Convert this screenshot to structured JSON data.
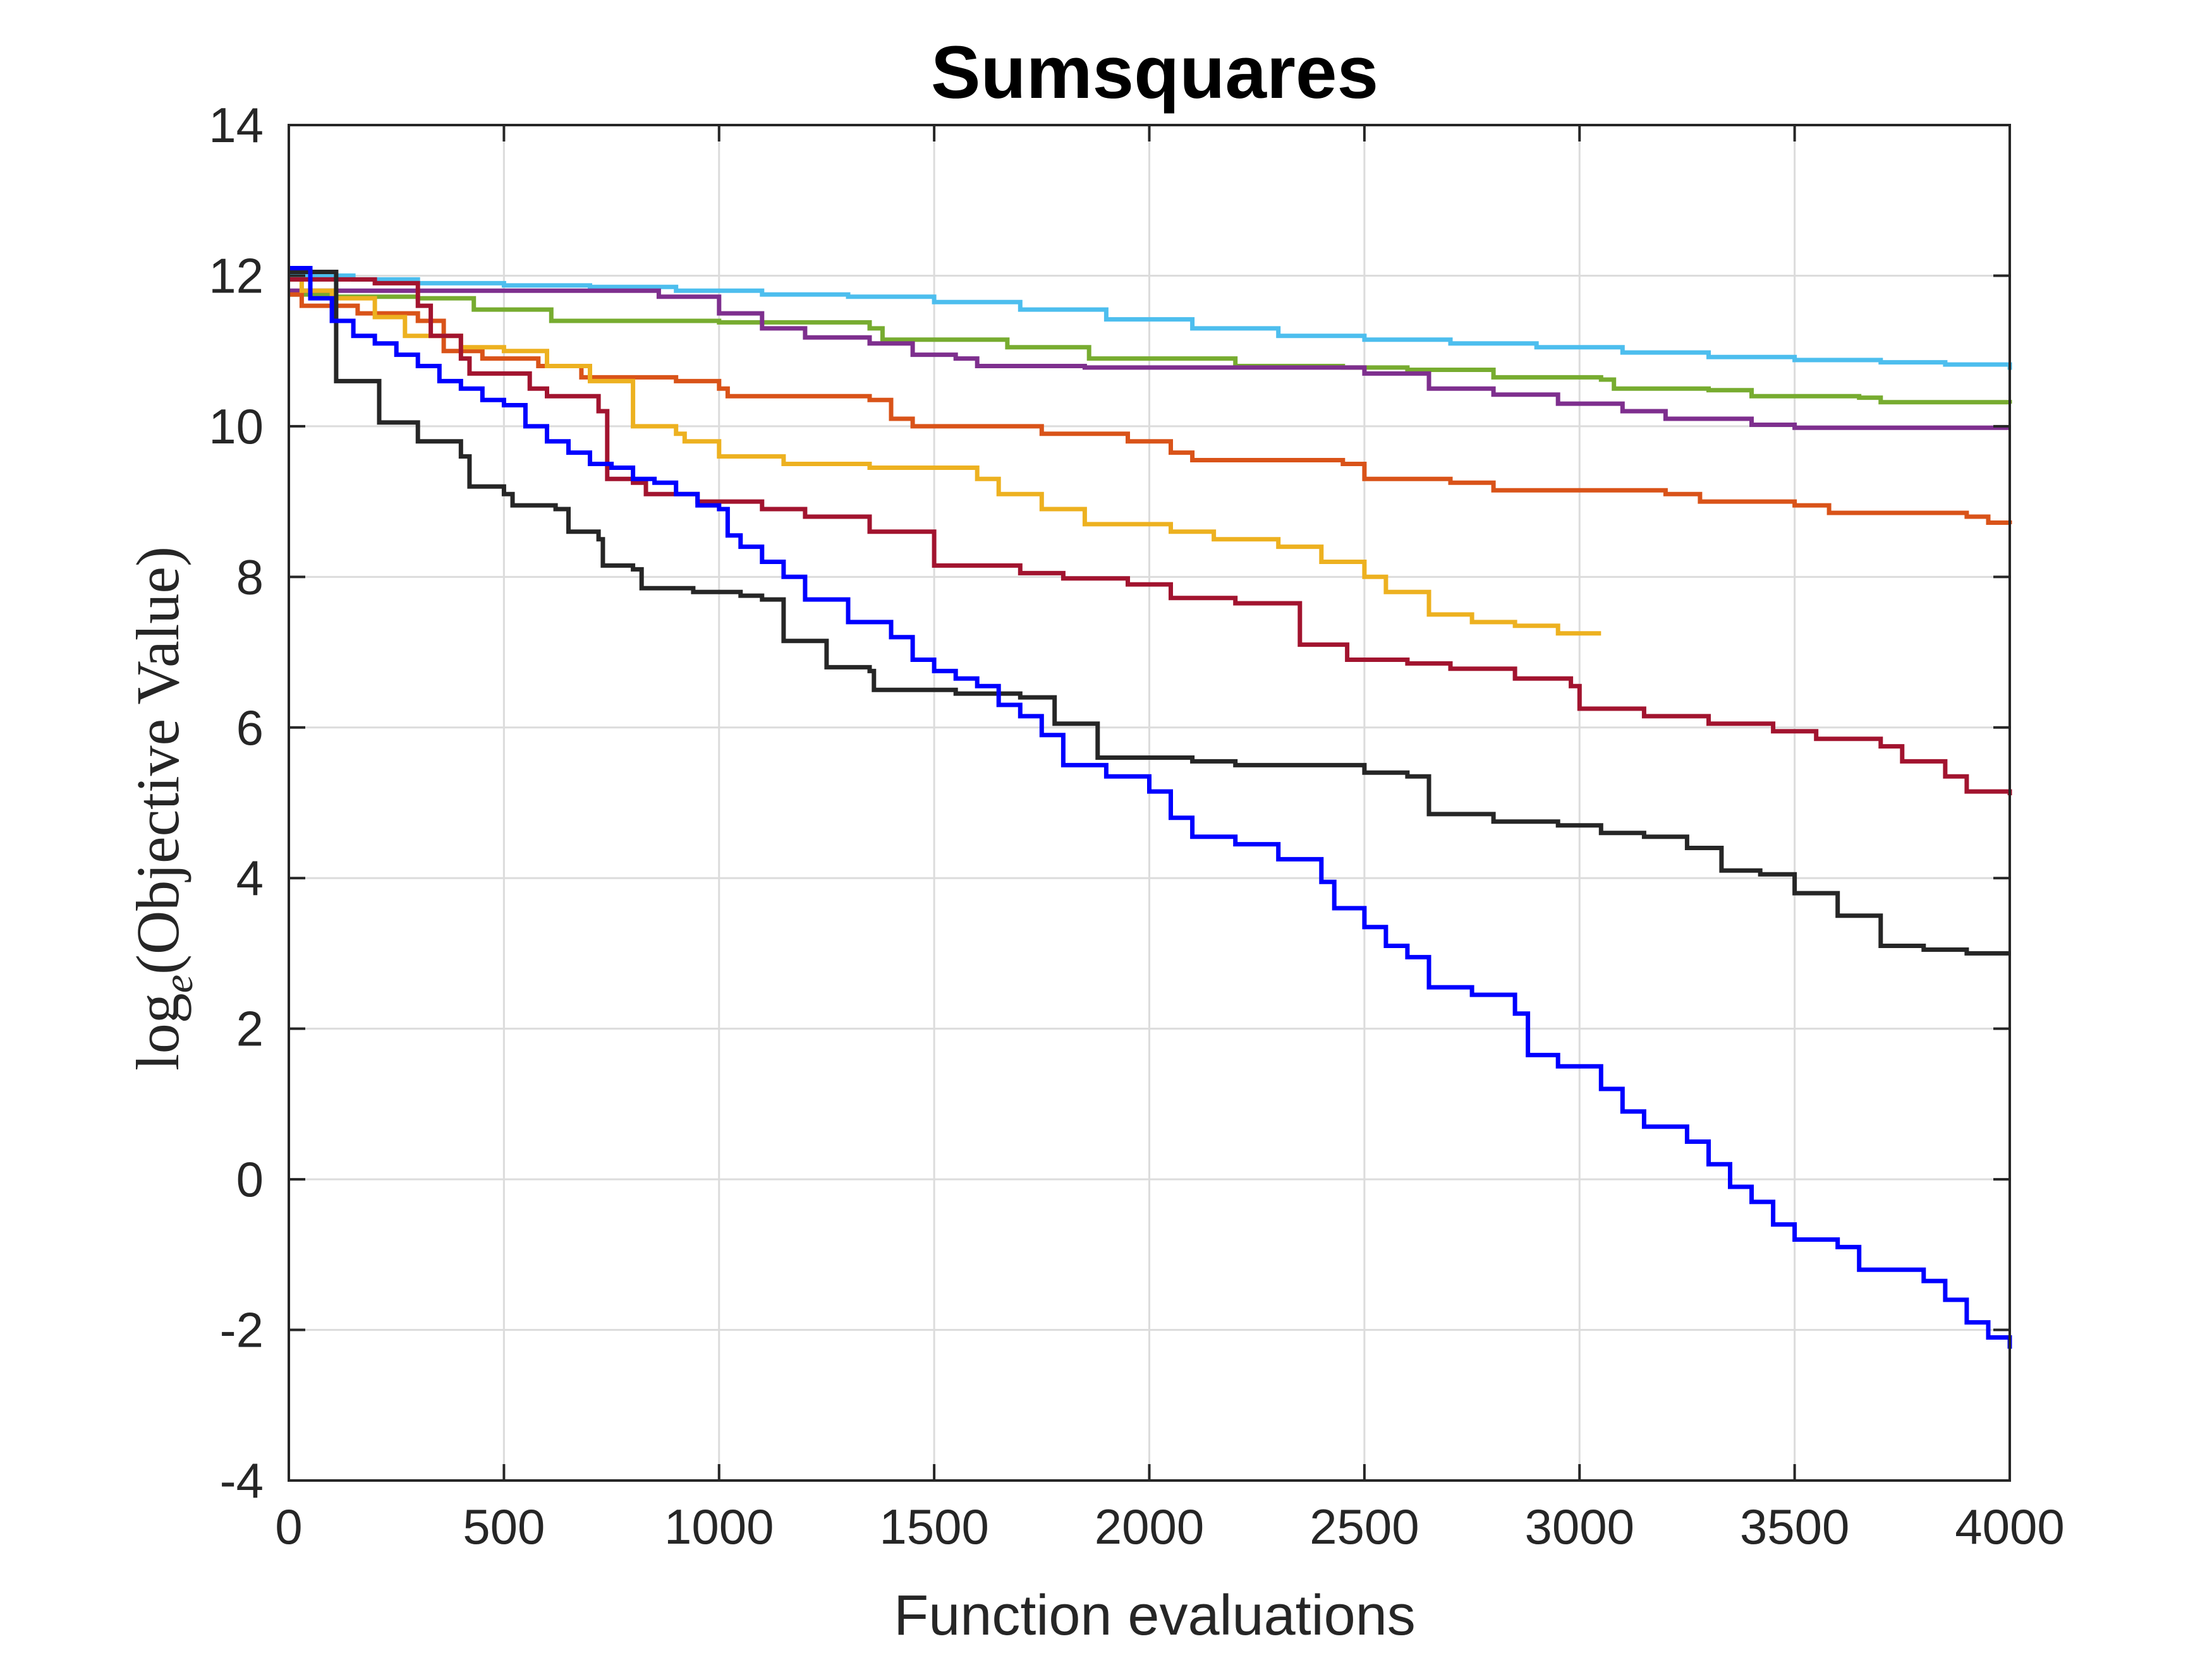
{
  "chart_data": {
    "type": "line",
    "title": "Sumsquares",
    "xlabel": "Function evaluations",
    "ylabel": {
      "prefix": "log",
      "subscript": "e",
      "suffix": "(Objective Value)"
    },
    "xlim": [
      0,
      4000
    ],
    "ylim": [
      -4,
      14
    ],
    "xticks": [
      0,
      500,
      1000,
      1500,
      2000,
      2500,
      3000,
      3500,
      4000
    ],
    "xtick_labels": [
      "0",
      "500",
      "1000",
      "1500",
      "2000",
      "2500",
      "3000",
      "3500",
      "4000"
    ],
    "yticks": [
      -4,
      -2,
      0,
      2,
      4,
      6,
      8,
      10,
      12,
      14
    ],
    "ytick_labels": [
      "-4",
      "-2",
      "0",
      "2",
      "4",
      "6",
      "8",
      "10",
      "12",
      "14"
    ],
    "grid": true,
    "legend": "none",
    "series": [
      {
        "color": "#4DBEEE",
        "points": [
          [
            0,
            12.0
          ],
          [
            150,
            11.95
          ],
          [
            300,
            11.9
          ],
          [
            500,
            11.87
          ],
          [
            700,
            11.85
          ],
          [
            900,
            11.8
          ],
          [
            1100,
            11.75
          ],
          [
            1300,
            11.72
          ],
          [
            1500,
            11.65
          ],
          [
            1700,
            11.55
          ],
          [
            1900,
            11.42
          ],
          [
            2100,
            11.3
          ],
          [
            2300,
            11.2
          ],
          [
            2500,
            11.15
          ],
          [
            2700,
            11.1
          ],
          [
            2900,
            11.05
          ],
          [
            3100,
            10.98
          ],
          [
            3300,
            10.92
          ],
          [
            3500,
            10.88
          ],
          [
            3700,
            10.85
          ],
          [
            3850,
            10.82
          ],
          [
            4000,
            10.75
          ]
        ]
      },
      {
        "color": "#77AC30",
        "points": [
          [
            0,
            11.75
          ],
          [
            100,
            11.72
          ],
          [
            300,
            11.7
          ],
          [
            430,
            11.55
          ],
          [
            600,
            11.55
          ],
          [
            610,
            11.4
          ],
          [
            900,
            11.4
          ],
          [
            1000,
            11.38
          ],
          [
            1350,
            11.3
          ],
          [
            1380,
            11.15
          ],
          [
            1650,
            11.15
          ],
          [
            1670,
            11.05
          ],
          [
            1850,
            11.05
          ],
          [
            1860,
            10.9
          ],
          [
            2150,
            10.9
          ],
          [
            2200,
            10.8
          ],
          [
            2450,
            10.78
          ],
          [
            2600,
            10.75
          ],
          [
            2800,
            10.65
          ],
          [
            3050,
            10.62
          ],
          [
            3080,
            10.5
          ],
          [
            3300,
            10.48
          ],
          [
            3400,
            10.4
          ],
          [
            3650,
            10.38
          ],
          [
            3700,
            10.32
          ],
          [
            4000,
            10.3
          ]
        ]
      },
      {
        "color": "#7E2F8E",
        "points": [
          [
            0,
            11.8
          ],
          [
            500,
            11.8
          ],
          [
            800,
            11.8
          ],
          [
            860,
            11.72
          ],
          [
            1000,
            11.5
          ],
          [
            1100,
            11.3
          ],
          [
            1200,
            11.18
          ],
          [
            1350,
            11.1
          ],
          [
            1450,
            10.95
          ],
          [
            1550,
            10.9
          ],
          [
            1600,
            10.8
          ],
          [
            1850,
            10.78
          ],
          [
            2100,
            10.78
          ],
          [
            2400,
            10.78
          ],
          [
            2500,
            10.7
          ],
          [
            2650,
            10.5
          ],
          [
            2800,
            10.42
          ],
          [
            2950,
            10.3
          ],
          [
            3100,
            10.2
          ],
          [
            3200,
            10.1
          ],
          [
            3400,
            10.02
          ],
          [
            3500,
            9.98
          ],
          [
            4000,
            9.98
          ]
        ]
      },
      {
        "color": "#D95319",
        "points": [
          [
            0,
            11.75
          ],
          [
            30,
            11.6
          ],
          [
            160,
            11.5
          ],
          [
            300,
            11.4
          ],
          [
            360,
            11.0
          ],
          [
            450,
            10.9
          ],
          [
            580,
            10.8
          ],
          [
            680,
            10.65
          ],
          [
            900,
            10.6
          ],
          [
            1000,
            10.5
          ],
          [
            1020,
            10.4
          ],
          [
            1350,
            10.35
          ],
          [
            1400,
            10.1
          ],
          [
            1450,
            10.0
          ],
          [
            1750,
            9.9
          ],
          [
            1950,
            9.8
          ],
          [
            2050,
            9.65
          ],
          [
            2100,
            9.55
          ],
          [
            2450,
            9.5
          ],
          [
            2500,
            9.3
          ],
          [
            2700,
            9.25
          ],
          [
            2800,
            9.15
          ],
          [
            3200,
            9.1
          ],
          [
            3280,
            9.0
          ],
          [
            3500,
            8.95
          ],
          [
            3580,
            8.85
          ],
          [
            3900,
            8.8
          ],
          [
            3950,
            8.72
          ],
          [
            4000,
            8.7
          ]
        ]
      },
      {
        "color": "#EDB120",
        "points": [
          [
            0,
            11.95
          ],
          [
            30,
            11.8
          ],
          [
            100,
            11.7
          ],
          [
            200,
            11.45
          ],
          [
            270,
            11.2
          ],
          [
            400,
            11.05
          ],
          [
            500,
            11.0
          ],
          [
            600,
            10.8
          ],
          [
            700,
            10.6
          ],
          [
            800,
            10.0
          ],
          [
            900,
            9.9
          ],
          [
            920,
            9.8
          ],
          [
            1000,
            9.6
          ],
          [
            1150,
            9.5
          ],
          [
            1350,
            9.45
          ],
          [
            1600,
            9.3
          ],
          [
            1650,
            9.1
          ],
          [
            1750,
            8.9
          ],
          [
            1850,
            8.7
          ],
          [
            2050,
            8.6
          ],
          [
            2150,
            8.5
          ],
          [
            2300,
            8.4
          ],
          [
            2400,
            8.2
          ],
          [
            2500,
            8.0
          ],
          [
            2550,
            7.8
          ],
          [
            2650,
            7.5
          ],
          [
            2750,
            7.4
          ],
          [
            2850,
            7.35
          ],
          [
            2950,
            7.25
          ],
          [
            3050,
            7.25
          ]
        ]
      },
      {
        "color": "#A2142F",
        "points": [
          [
            0,
            11.95
          ],
          [
            100,
            11.95
          ],
          [
            200,
            11.9
          ],
          [
            300,
            11.6
          ],
          [
            330,
            11.2
          ],
          [
            400,
            10.9
          ],
          [
            420,
            10.7
          ],
          [
            560,
            10.5
          ],
          [
            600,
            10.4
          ],
          [
            720,
            10.2
          ],
          [
            740,
            9.3
          ],
          [
            800,
            9.25
          ],
          [
            830,
            9.1
          ],
          [
            950,
            9.0
          ],
          [
            1100,
            8.9
          ],
          [
            1200,
            8.8
          ],
          [
            1350,
            8.6
          ],
          [
            1500,
            8.45
          ],
          [
            1500,
            8.15
          ],
          [
            1700,
            8.05
          ],
          [
            1800,
            7.98
          ],
          [
            1950,
            7.9
          ],
          [
            2050,
            7.72
          ],
          [
            2200,
            7.65
          ],
          [
            2350,
            7.55
          ],
          [
            2350,
            7.1
          ],
          [
            2450,
            7.1
          ],
          [
            2460,
            6.9
          ],
          [
            2600,
            6.85
          ],
          [
            2700,
            6.78
          ],
          [
            2850,
            6.65
          ],
          [
            2980,
            6.55
          ],
          [
            3000,
            6.25
          ],
          [
            3150,
            6.15
          ],
          [
            3300,
            6.05
          ],
          [
            3450,
            5.95
          ],
          [
            3550,
            5.85
          ],
          [
            3700,
            5.75
          ],
          [
            3750,
            5.55
          ],
          [
            3850,
            5.35
          ],
          [
            3900,
            5.15
          ],
          [
            4000,
            5.1
          ]
        ]
      },
      {
        "color": "#262626",
        "points": [
          [
            0,
            12.05
          ],
          [
            100,
            12.05
          ],
          [
            110,
            10.6
          ],
          [
            200,
            10.6
          ],
          [
            210,
            10.05
          ],
          [
            300,
            9.8
          ],
          [
            400,
            9.6
          ],
          [
            420,
            9.2
          ],
          [
            500,
            9.1
          ],
          [
            520,
            8.95
          ],
          [
            620,
            8.9
          ],
          [
            650,
            8.6
          ],
          [
            720,
            8.5
          ],
          [
            730,
            8.15
          ],
          [
            800,
            8.1
          ],
          [
            820,
            7.85
          ],
          [
            940,
            7.8
          ],
          [
            1050,
            7.75
          ],
          [
            1100,
            7.7
          ],
          [
            1150,
            7.15
          ],
          [
            1250,
            7.1
          ],
          [
            1250,
            6.8
          ],
          [
            1350,
            6.75
          ],
          [
            1360,
            6.5
          ],
          [
            1550,
            6.45
          ],
          [
            1700,
            6.4
          ],
          [
            1780,
            6.3
          ],
          [
            1780,
            6.05
          ],
          [
            1880,
            6.0
          ],
          [
            1880,
            5.6
          ],
          [
            2100,
            5.55
          ],
          [
            2200,
            5.5
          ],
          [
            2500,
            5.4
          ],
          [
            2600,
            5.35
          ],
          [
            2650,
            4.85
          ],
          [
            2800,
            4.75
          ],
          [
            2950,
            4.7
          ],
          [
            3050,
            4.6
          ],
          [
            3150,
            4.55
          ],
          [
            3250,
            4.4
          ],
          [
            3330,
            4.1
          ],
          [
            3420,
            4.05
          ],
          [
            3500,
            3.8
          ],
          [
            3550,
            3.8
          ],
          [
            3600,
            3.5
          ],
          [
            3700,
            3.35
          ],
          [
            3700,
            3.1
          ],
          [
            3800,
            3.05
          ],
          [
            3900,
            3.0
          ],
          [
            4000,
            3.0
          ]
        ]
      },
      {
        "color": "#0000FF",
        "points": [
          [
            0,
            12.1
          ],
          [
            50,
            11.7
          ],
          [
            100,
            11.4
          ],
          [
            150,
            11.2
          ],
          [
            200,
            11.1
          ],
          [
            250,
            10.95
          ],
          [
            300,
            10.8
          ],
          [
            350,
            10.6
          ],
          [
            400,
            10.5
          ],
          [
            450,
            10.35
          ],
          [
            500,
            10.28
          ],
          [
            550,
            10.0
          ],
          [
            600,
            9.8
          ],
          [
            650,
            9.65
          ],
          [
            700,
            9.5
          ],
          [
            750,
            9.45
          ],
          [
            800,
            9.3
          ],
          [
            850,
            9.25
          ],
          [
            900,
            9.1
          ],
          [
            950,
            8.95
          ],
          [
            1000,
            8.9
          ],
          [
            1020,
            8.55
          ],
          [
            1050,
            8.4
          ],
          [
            1100,
            8.2
          ],
          [
            1150,
            8.0
          ],
          [
            1200,
            7.7
          ],
          [
            1300,
            7.4
          ],
          [
            1400,
            7.2
          ],
          [
            1450,
            6.9
          ],
          [
            1500,
            6.75
          ],
          [
            1550,
            6.65
          ],
          [
            1600,
            6.55
          ],
          [
            1650,
            6.3
          ],
          [
            1700,
            6.15
          ],
          [
            1750,
            5.9
          ],
          [
            1800,
            5.5
          ],
          [
            1900,
            5.35
          ],
          [
            2000,
            5.15
          ],
          [
            2050,
            4.8
          ],
          [
            2100,
            4.55
          ],
          [
            2200,
            4.45
          ],
          [
            2300,
            4.25
          ],
          [
            2400,
            3.95
          ],
          [
            2430,
            3.6
          ],
          [
            2500,
            3.35
          ],
          [
            2550,
            3.1
          ],
          [
            2600,
            2.95
          ],
          [
            2650,
            2.55
          ],
          [
            2750,
            2.45
          ],
          [
            2850,
            2.2
          ],
          [
            2880,
            1.65
          ],
          [
            2950,
            1.5
          ],
          [
            3050,
            1.2
          ],
          [
            3100,
            0.9
          ],
          [
            3150,
            0.7
          ],
          [
            3250,
            0.5
          ],
          [
            3300,
            0.2
          ],
          [
            3350,
            -0.1
          ],
          [
            3400,
            -0.3
          ],
          [
            3450,
            -0.6
          ],
          [
            3500,
            -0.8
          ],
          [
            3600,
            -0.9
          ],
          [
            3650,
            -1.2
          ],
          [
            3800,
            -1.35
          ],
          [
            3850,
            -1.6
          ],
          [
            3900,
            -1.9
          ],
          [
            3950,
            -2.1
          ],
          [
            4000,
            -2.25
          ]
        ]
      }
    ]
  }
}
